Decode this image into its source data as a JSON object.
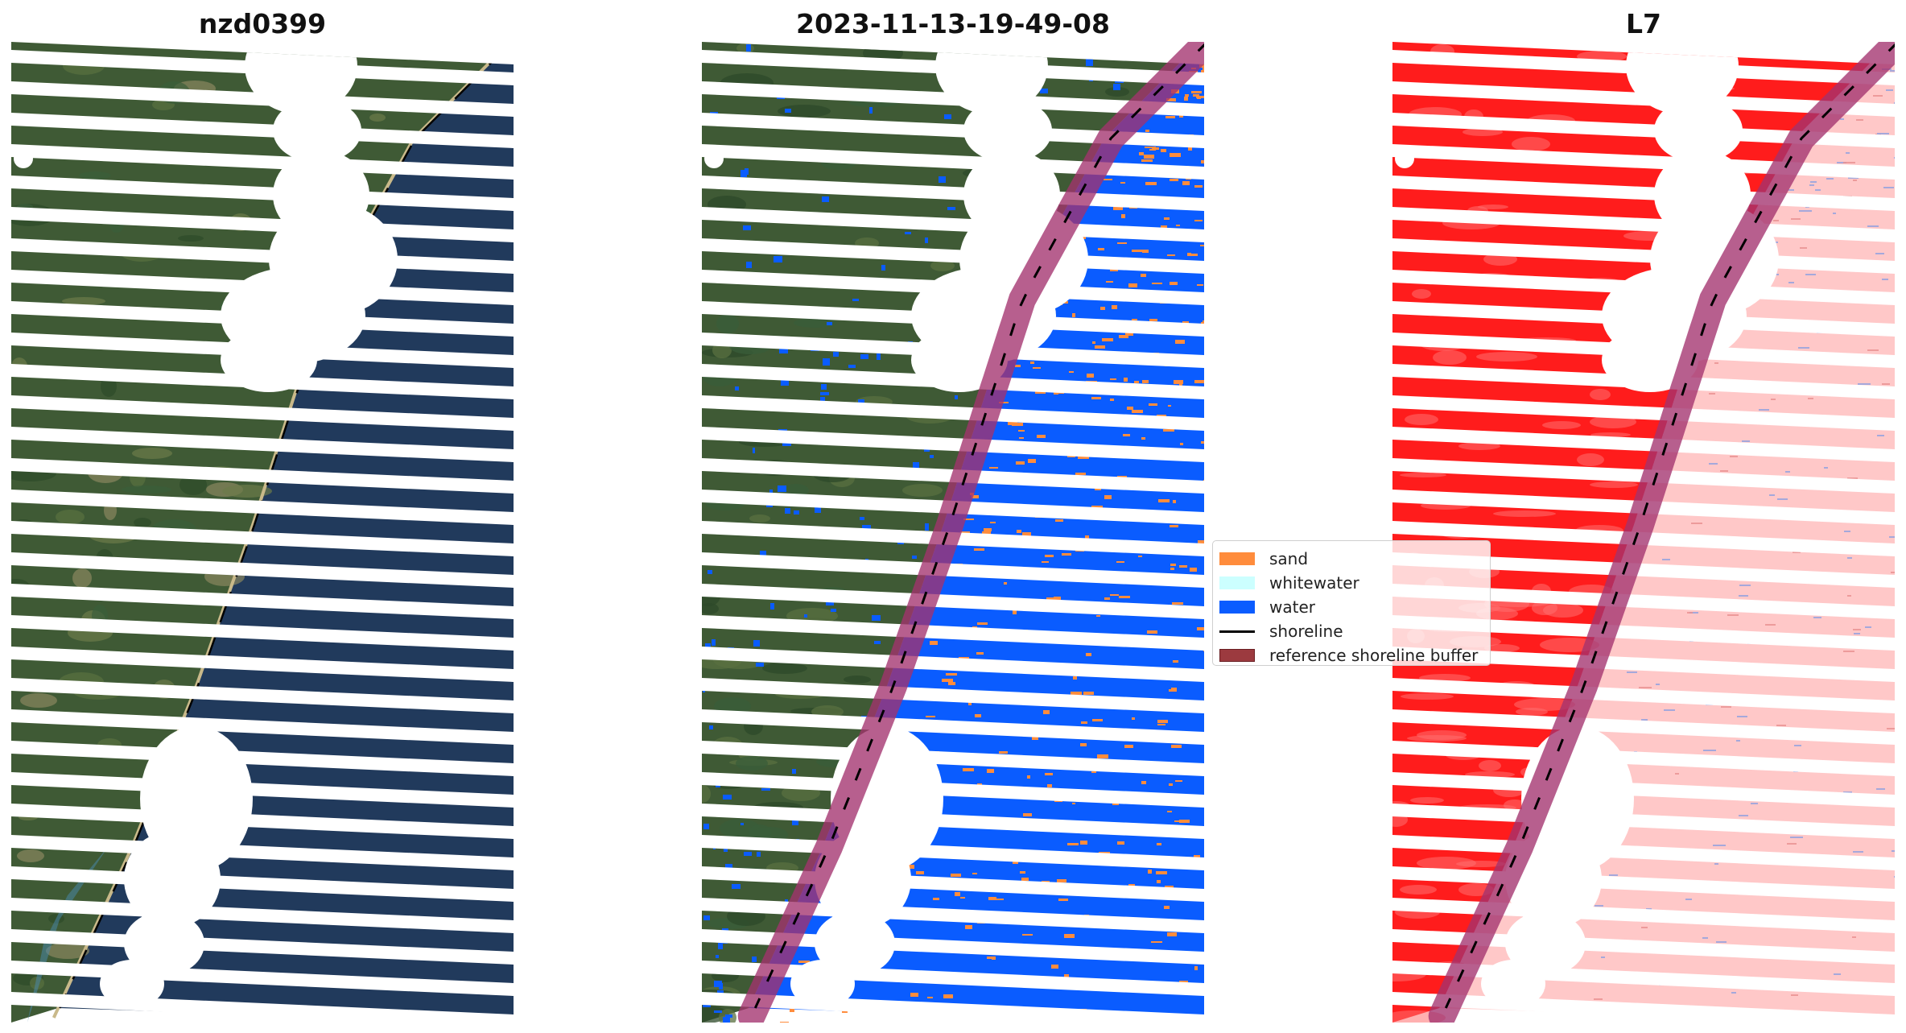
{
  "panels": [
    {
      "title": "nzd0399",
      "mode": "rgb"
    },
    {
      "title": "2023-11-13-19-49-08",
      "mode": "classified"
    },
    {
      "title": "L7",
      "mode": "index"
    }
  ],
  "legend": {
    "items": [
      {
        "label": "sand",
        "kind": "patch",
        "color": "#ff8c3c"
      },
      {
        "label": "whitewater",
        "kind": "patch",
        "color": "#ccffff"
      },
      {
        "label": "water",
        "kind": "patch",
        "color": "#0a5cff"
      },
      {
        "label": "shoreline",
        "kind": "line",
        "color": "#000000"
      },
      {
        "label": "reference shoreline buffer",
        "kind": "patch",
        "color": "#9c3a3f"
      }
    ]
  },
  "colors": {
    "land": "#3f5a35",
    "ocean": "#213a5c",
    "water_class": "#0a5cff",
    "index_land": "#ff1c1c",
    "index_water": "#ffc8c8",
    "buffer": "#a3326e"
  }
}
